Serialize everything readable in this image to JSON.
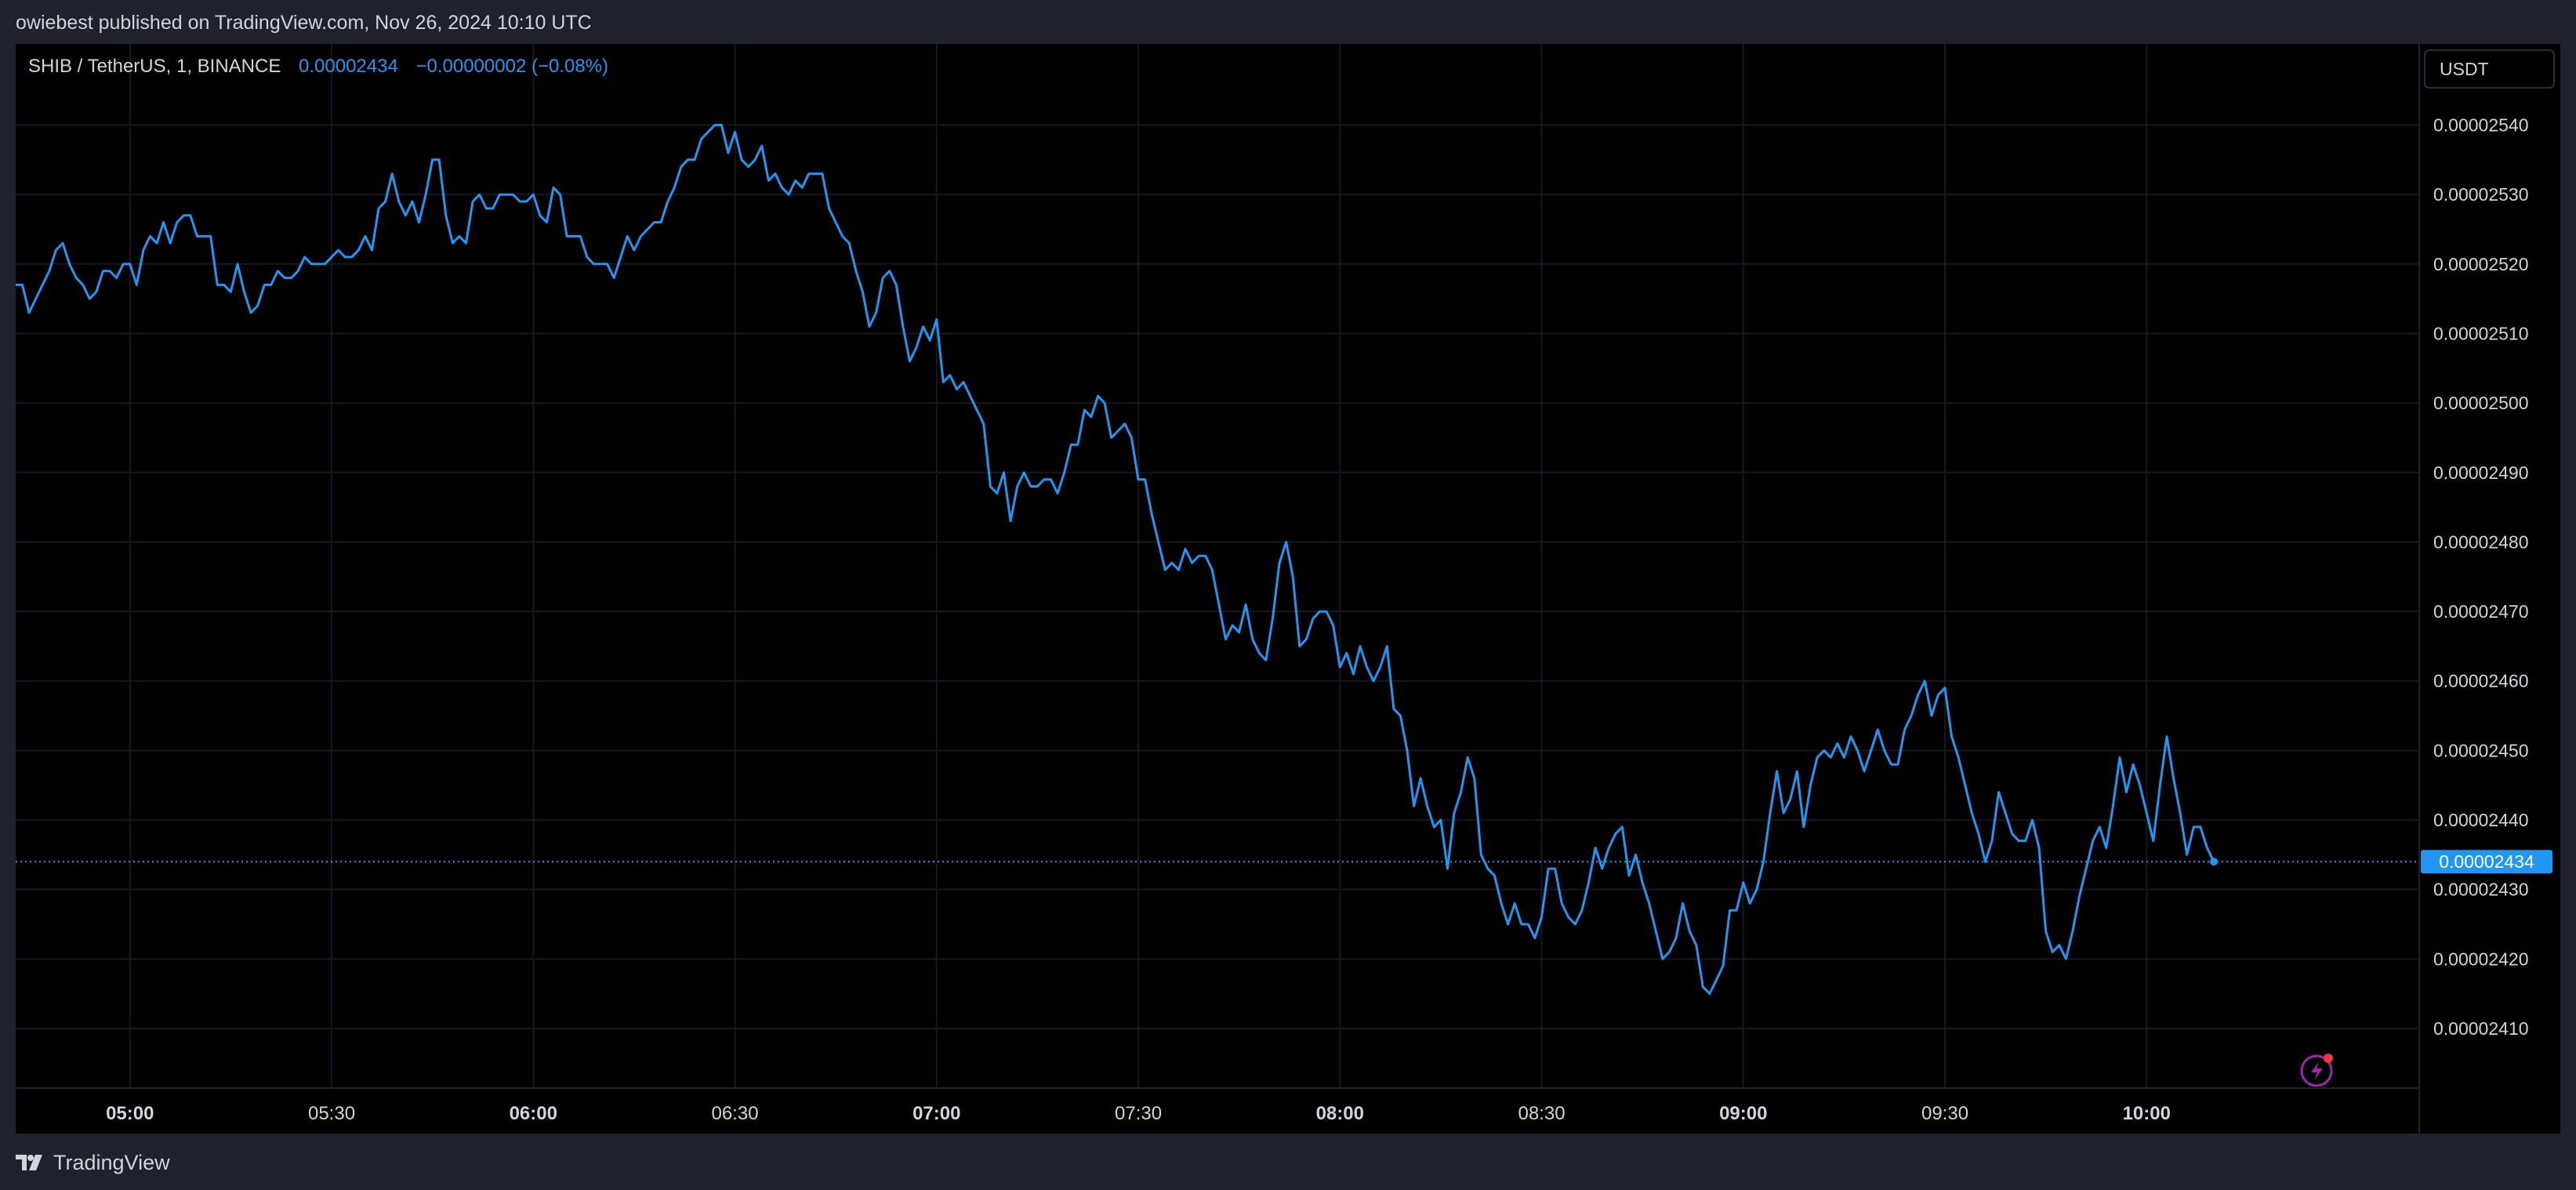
{
  "publisher": {
    "text": "owiebest published on TradingView.com, Nov 26, 2024 10:10 UTC"
  },
  "header": {
    "symbol": "SHIB / TetherUS, 1, BINANCE",
    "price": "0.00002434",
    "change": "−0.00000002 (−0.08%)"
  },
  "currency_button": {
    "label": "USDT"
  },
  "brand": {
    "name": "TradingView"
  },
  "colors": {
    "line": "#2196f3",
    "price_tag": "#2196f3",
    "text": "#d1d4dc",
    "grid": "#1a1a1a",
    "background": "#000000",
    "frame": "#1e222d"
  },
  "icons": {
    "logo": "tradingview-logo-icon",
    "indicator": "lightning-icon"
  },
  "chart_data": {
    "type": "line",
    "x_unit": "minutes since 04:43 UTC, 1-minute bars",
    "ylabel": "",
    "ylim": [
      2.403e-05,
      2.551e-05
    ],
    "grid": true,
    "last_price": 2.434e-05,
    "x_ticks": [
      {
        "minute": 17,
        "label": "05:00",
        "bold": true
      },
      {
        "minute": 47,
        "label": "05:30",
        "bold": false
      },
      {
        "minute": 77,
        "label": "06:00",
        "bold": true
      },
      {
        "minute": 107,
        "label": "06:30",
        "bold": false
      },
      {
        "minute": 137,
        "label": "07:00",
        "bold": true
      },
      {
        "minute": 167,
        "label": "07:30",
        "bold": false
      },
      {
        "minute": 197,
        "label": "08:00",
        "bold": true
      },
      {
        "minute": 227,
        "label": "08:30",
        "bold": false
      },
      {
        "minute": 257,
        "label": "09:00",
        "bold": true
      },
      {
        "minute": 287,
        "label": "09:30",
        "bold": false
      },
      {
        "minute": 317,
        "label": "10:00",
        "bold": true
      }
    ],
    "y_ticks": [
      {
        "value": 2.41e-05,
        "label": "0.00002410"
      },
      {
        "value": 2.42e-05,
        "label": "0.00002420"
      },
      {
        "value": 2.43e-05,
        "label": "0.00002430"
      },
      {
        "value": 2.44e-05,
        "label": "0.00002440"
      },
      {
        "value": 2.45e-05,
        "label": "0.00002450"
      },
      {
        "value": 2.46e-05,
        "label": "0.00002460"
      },
      {
        "value": 2.47e-05,
        "label": "0.00002470"
      },
      {
        "value": 2.48e-05,
        "label": "0.00002480"
      },
      {
        "value": 2.49e-05,
        "label": "0.00002490"
      },
      {
        "value": 2.5e-05,
        "label": "0.00002500"
      },
      {
        "value": 2.51e-05,
        "label": "0.00002510"
      },
      {
        "value": 2.52e-05,
        "label": "0.00002520"
      },
      {
        "value": 2.53e-05,
        "label": "0.00002530"
      },
      {
        "value": 2.54e-05,
        "label": "0.00002540"
      }
    ],
    "series": [
      {
        "x": [
          0,
          1,
          2,
          3,
          4,
          5,
          6,
          7,
          8,
          9,
          10,
          11,
          12,
          13,
          14,
          15,
          16,
          17,
          18,
          19,
          20,
          21,
          22,
          23,
          24,
          25,
          26,
          27,
          28,
          29,
          30,
          31,
          32,
          33,
          34,
          35,
          36,
          37,
          38,
          39,
          40,
          41,
          42,
          43,
          44,
          45,
          46,
          47,
          48,
          49,
          50,
          51,
          52,
          53,
          54,
          55,
          56,
          57,
          58,
          59,
          60,
          61,
          62,
          63,
          64,
          65,
          66,
          67,
          68,
          69,
          70,
          71,
          72,
          73,
          74,
          75,
          76,
          77,
          78,
          79,
          80,
          81,
          82,
          83,
          84,
          85,
          86,
          87,
          88,
          89,
          90,
          91,
          92,
          93,
          94,
          95,
          96,
          97,
          98,
          99,
          100,
          101,
          102,
          103,
          104,
          105,
          106,
          107,
          108,
          109,
          110,
          111,
          112,
          113,
          114,
          115,
          116,
          117,
          118,
          119,
          120,
          121,
          122,
          123,
          124,
          125,
          126,
          127,
          128,
          129,
          130,
          131,
          132,
          133,
          134,
          135,
          136,
          137,
          138,
          139,
          140,
          141,
          142,
          143,
          144,
          145,
          146,
          147,
          148,
          149,
          150,
          151,
          152,
          153,
          154,
          155,
          156,
          157,
          158,
          159,
          160,
          161,
          162,
          163,
          164,
          165,
          166,
          167,
          168,
          169,
          170,
          171,
          172,
          173,
          174,
          175,
          176,
          177,
          178,
          179,
          180,
          181,
          182,
          183,
          184,
          185,
          186,
          187,
          188,
          189,
          190,
          191,
          192,
          193,
          194,
          195,
          196,
          197,
          198,
          199,
          200,
          201,
          202,
          203,
          204,
          205,
          206,
          207,
          208,
          209,
          210,
          211,
          212,
          213,
          214,
          215,
          216,
          217,
          218,
          219,
          220,
          221,
          222,
          223,
          224,
          225,
          226,
          227,
          228,
          229,
          230,
          231,
          232,
          233,
          234,
          235,
          236,
          237,
          238,
          239,
          240,
          241,
          242,
          243,
          244,
          245,
          246,
          247,
          248,
          249,
          250,
          251,
          252,
          253,
          254,
          255,
          256,
          257,
          258,
          259,
          260,
          261,
          262,
          263,
          264,
          265,
          266,
          267,
          268,
          269,
          270,
          271,
          272,
          273,
          274,
          275,
          276,
          277,
          278,
          279,
          280,
          281,
          282,
          283,
          284,
          285,
          286,
          287,
          288,
          289,
          290,
          291,
          292,
          293,
          294,
          295,
          296,
          297,
          298,
          299,
          300,
          301,
          302,
          303,
          304,
          305,
          306,
          307,
          308,
          309,
          310,
          311,
          312,
          313,
          314,
          315,
          316,
          317,
          318,
          319,
          320,
          321,
          322,
          323,
          324,
          325,
          326,
          327
        ],
        "y": [
          2.517e-05,
          2.517e-05,
          2.513e-05,
          2.515e-05,
          2.517e-05,
          2.519e-05,
          2.522e-05,
          2.523e-05,
          2.52e-05,
          2.518e-05,
          2.517e-05,
          2.515e-05,
          2.516e-05,
          2.519e-05,
          2.519e-05,
          2.518e-05,
          2.52e-05,
          2.52e-05,
          2.517e-05,
          2.522e-05,
          2.524e-05,
          2.523e-05,
          2.526e-05,
          2.523e-05,
          2.526e-05,
          2.527e-05,
          2.527e-05,
          2.524e-05,
          2.524e-05,
          2.524e-05,
          2.517e-05,
          2.517e-05,
          2.516e-05,
          2.52e-05,
          2.516e-05,
          2.513e-05,
          2.514e-05,
          2.517e-05,
          2.517e-05,
          2.519e-05,
          2.518e-05,
          2.518e-05,
          2.519e-05,
          2.521e-05,
          2.52e-05,
          2.52e-05,
          2.52e-05,
          2.521e-05,
          2.522e-05,
          2.521e-05,
          2.521e-05,
          2.522e-05,
          2.524e-05,
          2.522e-05,
          2.528e-05,
          2.529e-05,
          2.533e-05,
          2.529e-05,
          2.527e-05,
          2.529e-05,
          2.526e-05,
          2.53e-05,
          2.535e-05,
          2.535e-05,
          2.527e-05,
          2.523e-05,
          2.524e-05,
          2.523e-05,
          2.529e-05,
          2.53e-05,
          2.528e-05,
          2.528e-05,
          2.53e-05,
          2.53e-05,
          2.53e-05,
          2.529e-05,
          2.529e-05,
          2.53e-05,
          2.527e-05,
          2.526e-05,
          2.531e-05,
          2.53e-05,
          2.524e-05,
          2.524e-05,
          2.524e-05,
          2.521e-05,
          2.52e-05,
          2.52e-05,
          2.52e-05,
          2.518e-05,
          2.521e-05,
          2.524e-05,
          2.522e-05,
          2.524e-05,
          2.525e-05,
          2.526e-05,
          2.526e-05,
          2.529e-05,
          2.531e-05,
          2.534e-05,
          2.535e-05,
          2.535e-05,
          2.538e-05,
          2.539e-05,
          2.54e-05,
          2.54e-05,
          2.536e-05,
          2.539e-05,
          2.535e-05,
          2.534e-05,
          2.535e-05,
          2.537e-05,
          2.532e-05,
          2.533e-05,
          2.531e-05,
          2.53e-05,
          2.532e-05,
          2.531e-05,
          2.533e-05,
          2.533e-05,
          2.533e-05,
          2.528e-05,
          2.526e-05,
          2.524e-05,
          2.523e-05,
          2.519e-05,
          2.516e-05,
          2.511e-05,
          2.513e-05,
          2.518e-05,
          2.519e-05,
          2.517e-05,
          2.511e-05,
          2.506e-05,
          2.508e-05,
          2.511e-05,
          2.509e-05,
          2.512e-05,
          2.503e-05,
          2.504e-05,
          2.502e-05,
          2.503e-05,
          2.501e-05,
          2.499e-05,
          2.497e-05,
          2.488e-05,
          2.487e-05,
          2.49e-05,
          2.483e-05,
          2.488e-05,
          2.49e-05,
          2.488e-05,
          2.488e-05,
          2.489e-05,
          2.489e-05,
          2.487e-05,
          2.49e-05,
          2.494e-05,
          2.494e-05,
          2.499e-05,
          2.498e-05,
          2.501e-05,
          2.5e-05,
          2.495e-05,
          2.496e-05,
          2.497e-05,
          2.495e-05,
          2.489e-05,
          2.489e-05,
          2.484e-05,
          2.48e-05,
          2.476e-05,
          2.477e-05,
          2.476e-05,
          2.479e-05,
          2.477e-05,
          2.478e-05,
          2.478e-05,
          2.476e-05,
          2.471e-05,
          2.466e-05,
          2.468e-05,
          2.467e-05,
          2.471e-05,
          2.466e-05,
          2.464e-05,
          2.463e-05,
          2.469e-05,
          2.477e-05,
          2.48e-05,
          2.475e-05,
          2.465e-05,
          2.466e-05,
          2.469e-05,
          2.47e-05,
          2.47e-05,
          2.468e-05,
          2.462e-05,
          2.464e-05,
          2.461e-05,
          2.465e-05,
          2.462e-05,
          2.46e-05,
          2.462e-05,
          2.465e-05,
          2.456e-05,
          2.455e-05,
          2.45e-05,
          2.442e-05,
          2.446e-05,
          2.442e-05,
          2.439e-05,
          2.44e-05,
          2.433e-05,
          2.441e-05,
          2.444e-05,
          2.449e-05,
          2.446e-05,
          2.435e-05,
          2.433e-05,
          2.432e-05,
          2.428e-05,
          2.425e-05,
          2.428e-05,
          2.425e-05,
          2.425e-05,
          2.423e-05,
          2.426e-05,
          2.433e-05,
          2.433e-05,
          2.428e-05,
          2.426e-05,
          2.425e-05,
          2.427e-05,
          2.431e-05,
          2.436e-05,
          2.433e-05,
          2.436e-05,
          2.438e-05,
          2.439e-05,
          2.432e-05,
          2.435e-05,
          2.431e-05,
          2.428e-05,
          2.424e-05,
          2.42e-05,
          2.421e-05,
          2.423e-05,
          2.428e-05,
          2.424e-05,
          2.422e-05,
          2.416e-05,
          2.415e-05,
          2.417e-05,
          2.419e-05,
          2.427e-05,
          2.427e-05,
          2.431e-05,
          2.428e-05,
          2.43e-05,
          2.434e-05,
          2.441e-05,
          2.447e-05,
          2.441e-05,
          2.443e-05,
          2.447e-05,
          2.439e-05,
          2.445e-05,
          2.449e-05,
          2.45e-05,
          2.449e-05,
          2.451e-05,
          2.449e-05,
          2.452e-05,
          2.45e-05,
          2.447e-05,
          2.45e-05,
          2.453e-05,
          2.45e-05,
          2.448e-05,
          2.448e-05,
          2.453e-05,
          2.455e-05,
          2.458e-05,
          2.46e-05,
          2.455e-05,
          2.458e-05,
          2.459e-05,
          2.452e-05,
          2.449e-05,
          2.445e-05,
          2.441e-05,
          2.438e-05,
          2.434e-05,
          2.437e-05,
          2.444e-05,
          2.441e-05,
          2.438e-05,
          2.437e-05,
          2.437e-05,
          2.44e-05,
          2.436e-05,
          2.424e-05,
          2.421e-05,
          2.422e-05,
          2.42e-05,
          2.424e-05,
          2.429e-05,
          2.433e-05,
          2.437e-05,
          2.439e-05,
          2.436e-05,
          2.442e-05,
          2.449e-05,
          2.444e-05,
          2.448e-05,
          2.445e-05,
          2.441e-05,
          2.437e-05,
          2.445e-05,
          2.452e-05,
          2.446e-05,
          2.441e-05,
          2.435e-05,
          2.439e-05,
          2.439e-05,
          2.436e-05,
          2.434e-05
        ]
      }
    ]
  }
}
